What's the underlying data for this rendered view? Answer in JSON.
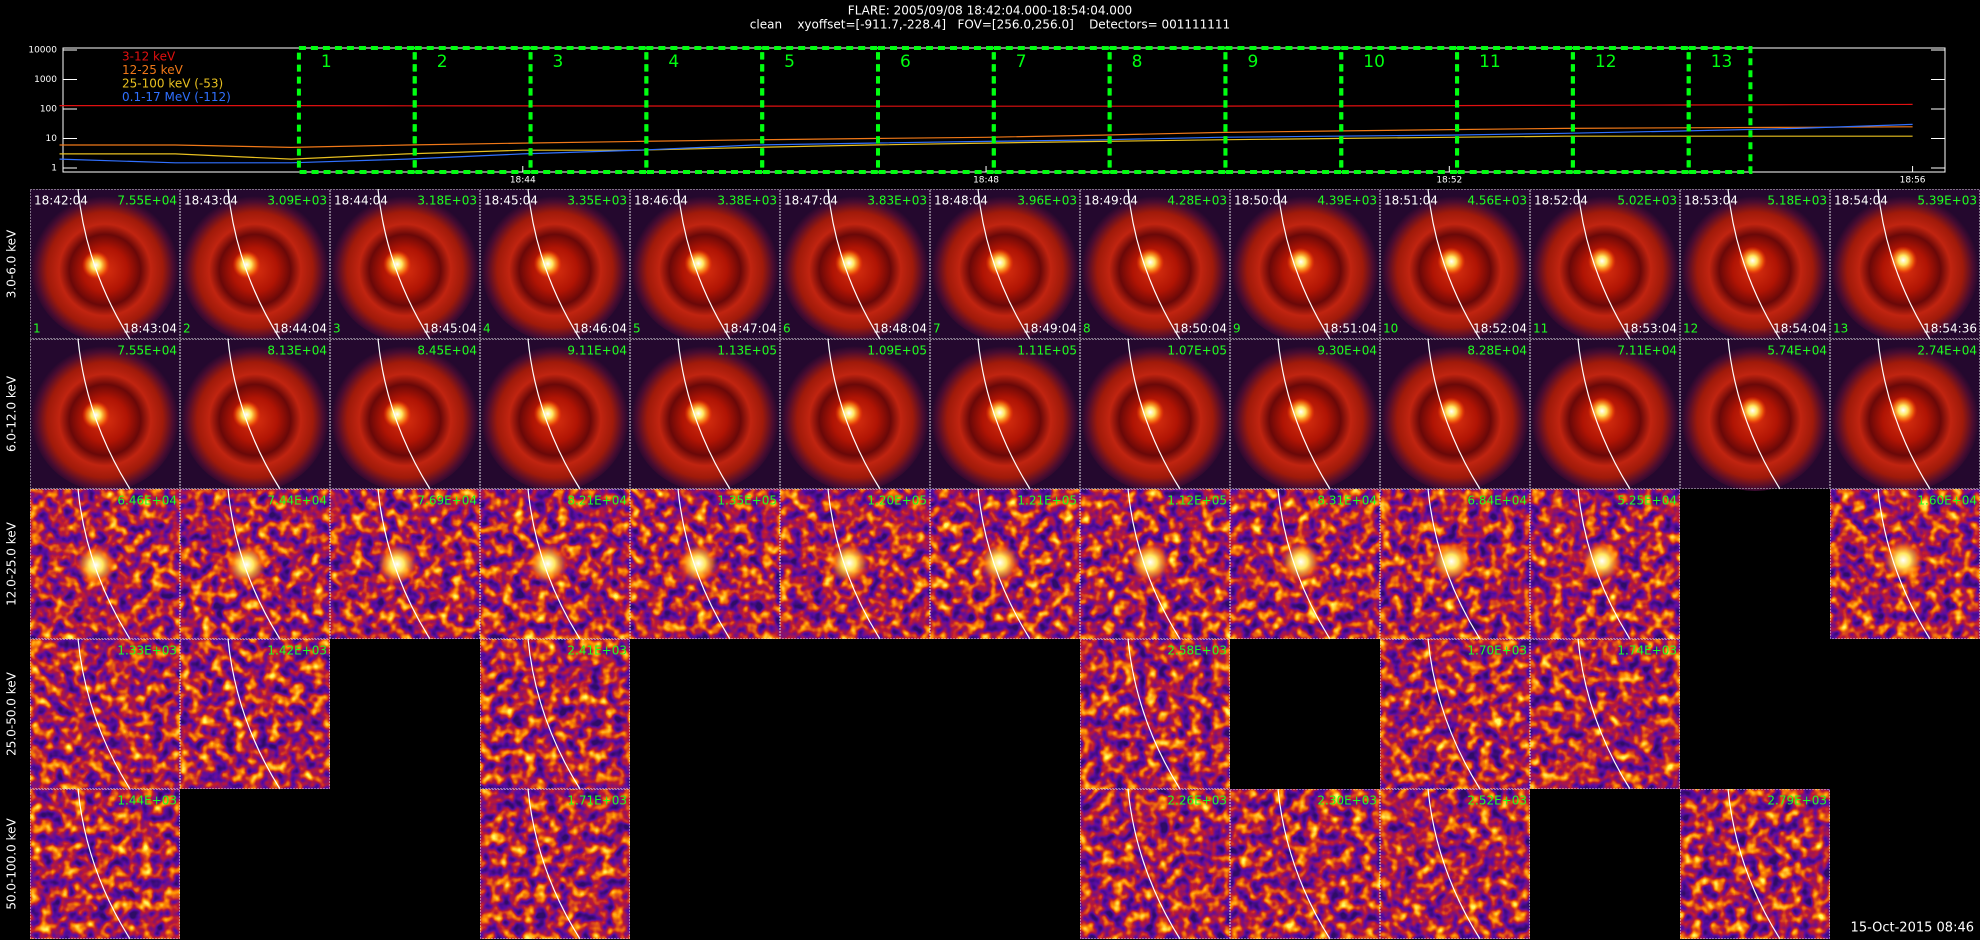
{
  "header": {
    "title": "FLARE: 2005/09/08 18:42:04.000-18:54:04.000",
    "subtitle": "clean    xyoffset=[-911.7,-228.4]   FOV=[256.0,256.0]    Detectors= 001111111"
  },
  "lightcurve": {
    "type": "line",
    "log_y": true,
    "ylim": [
      1,
      10000
    ],
    "yticks": [
      1,
      10,
      100,
      1000,
      10000
    ],
    "xlim": [
      40.03,
      56.28
    ],
    "xticks": [
      {
        "value": 44,
        "label": "18:44"
      },
      {
        "value": 48,
        "label": "18:48"
      },
      {
        "value": 52,
        "label": "18:52"
      },
      {
        "value": 56,
        "label": "18:56"
      }
    ],
    "x": [
      40,
      41,
      42,
      43,
      44,
      45,
      46,
      47,
      48,
      49,
      50,
      51,
      52,
      53,
      54,
      55,
      56
    ],
    "series": [
      {
        "name": "3-12 keV",
        "color": "#e01010",
        "values": [
          130,
          130,
          130,
          128,
          127,
          126,
          125,
          124,
          124,
          124,
          125,
          127,
          130,
          133,
          137,
          140,
          143
        ]
      },
      {
        "name": "12-25 keV",
        "color": "#f07818",
        "values": [
          6,
          6,
          5,
          6,
          7,
          8,
          9,
          10,
          11,
          13,
          16,
          18,
          20,
          22,
          23,
          24,
          25
        ]
      },
      {
        "name": "25-100 keV (-53)",
        "color": "#e8c020",
        "values": [
          3,
          3,
          2,
          3,
          4,
          4,
          5,
          6,
          7,
          8,
          9,
          10,
          11,
          12,
          12,
          12,
          12
        ]
      },
      {
        "name": "0.1-17 MeV (-112)",
        "color": "#3070ff",
        "values": [
          2,
          1.5,
          1.5,
          2,
          3,
          4,
          6,
          7,
          8,
          9,
          11,
          12,
          13,
          15,
          18,
          22,
          30
        ]
      }
    ],
    "intervals": [
      {
        "label": "1",
        "start": 42.067,
        "end": 43.067
      },
      {
        "label": "2",
        "start": 43.067,
        "end": 44.067
      },
      {
        "label": "3",
        "start": 44.067,
        "end": 45.067
      },
      {
        "label": "4",
        "start": 45.067,
        "end": 46.067
      },
      {
        "label": "5",
        "start": 46.067,
        "end": 47.067
      },
      {
        "label": "6",
        "start": 47.067,
        "end": 48.067
      },
      {
        "label": "7",
        "start": 48.067,
        "end": 49.067
      },
      {
        "label": "8",
        "start": 49.067,
        "end": 50.067
      },
      {
        "label": "9",
        "start": 50.067,
        "end": 51.067
      },
      {
        "label": "10",
        "start": 51.067,
        "end": 52.067
      },
      {
        "label": "11",
        "start": 52.067,
        "end": 53.067
      },
      {
        "label": "12",
        "start": 53.067,
        "end": 54.067
      },
      {
        "label": "13",
        "start": 54.067,
        "end": 54.6
      }
    ]
  },
  "panels": {
    "rows": [
      {
        "label": "3.0-6.0 keV",
        "cells": [
          {
            "start": "18:42:04",
            "flux": "7.55E+04",
            "index": "1",
            "end": "18:43:04"
          },
          {
            "start": "18:43:04",
            "flux": "3.09E+03",
            "index": "2",
            "end": "18:44:04"
          },
          {
            "start": "18:44:04",
            "flux": "3.18E+03",
            "index": "3",
            "end": "18:45:04"
          },
          {
            "start": "18:45:04",
            "flux": "3.35E+03",
            "index": "4",
            "end": "18:46:04"
          },
          {
            "start": "18:46:04",
            "flux": "3.38E+03",
            "index": "5",
            "end": "18:47:04"
          },
          {
            "start": "18:47:04",
            "flux": "3.83E+03",
            "index": "6",
            "end": "18:48:04"
          },
          {
            "start": "18:48:04",
            "flux": "3.96E+03",
            "index": "7",
            "end": "18:49:04"
          },
          {
            "start": "18:49:04",
            "flux": "4.28E+03",
            "index": "8",
            "end": "18:50:04"
          },
          {
            "start": "18:50:04",
            "flux": "4.39E+03",
            "index": "9",
            "end": "18:51:04"
          },
          {
            "start": "18:51:04",
            "flux": "4.56E+03",
            "index": "10",
            "end": "18:52:04"
          },
          {
            "start": "18:52:04",
            "flux": "5.02E+03",
            "index": "11",
            "end": "18:53:04"
          },
          {
            "start": "18:53:04",
            "flux": "5.18E+03",
            "index": "12",
            "end": "18:54:04"
          },
          {
            "start": "18:54:04",
            "flux": "5.39E+03",
            "index": "13",
            "end": "18:54:36"
          }
        ]
      },
      {
        "label": "6.0-12.0 keV",
        "cells": [
          {
            "flux": "7.55E+04"
          },
          {
            "flux": "8.13E+04"
          },
          {
            "flux": "8.45E+04"
          },
          {
            "flux": "9.11E+04"
          },
          {
            "flux": "1.13E+05"
          },
          {
            "flux": "1.09E+05"
          },
          {
            "flux": "1.11E+05"
          },
          {
            "flux": "1.07E+05"
          },
          {
            "flux": "9.30E+04"
          },
          {
            "flux": "8.28E+04"
          },
          {
            "flux": "7.11E+04"
          },
          {
            "flux": "5.74E+04"
          },
          {
            "flux": "2.74E+04"
          }
        ]
      },
      {
        "label": "12.0-25.0 keV",
        "cells": [
          {
            "flux": "6.46E+04"
          },
          {
            "flux": "7.44E+04"
          },
          {
            "flux": "7.69E+04"
          },
          {
            "flux": "8.21E+04"
          },
          {
            "flux": "1.35E+05"
          },
          {
            "flux": "1.20E+05"
          },
          {
            "flux": "1.21E+05"
          },
          {
            "flux": "1.12E+05"
          },
          {
            "flux": "8.31E+04"
          },
          {
            "flux": "6.84E+04"
          },
          {
            "flux": "5.25E+04"
          },
          null,
          {
            "flux": "1.60E+04"
          }
        ]
      },
      {
        "label": "25.0-50.0 keV",
        "cells": [
          {
            "flux": "1.33E+03"
          },
          {
            "flux": "1.42E+03"
          },
          null,
          {
            "flux": "2.41E+03"
          },
          null,
          null,
          null,
          {
            "flux": "2.58E+03"
          },
          null,
          {
            "flux": "1.70E+03"
          },
          {
            "flux": "1.74E+03"
          },
          null,
          null
        ]
      },
      {
        "label": "50.0-100.0 keV",
        "cells": [
          {
            "flux": "1.44E+03"
          },
          null,
          null,
          {
            "flux": "1.71E+03"
          },
          null,
          null,
          null,
          {
            "flux": "2.26E+03"
          },
          {
            "flux": "2.30E+03"
          },
          {
            "flux": "2.52E+03"
          },
          null,
          {
            "flux": "2.79E+03"
          },
          null
        ]
      }
    ]
  },
  "footer": {
    "timestamp": "15-Oct-2015 08:46"
  }
}
